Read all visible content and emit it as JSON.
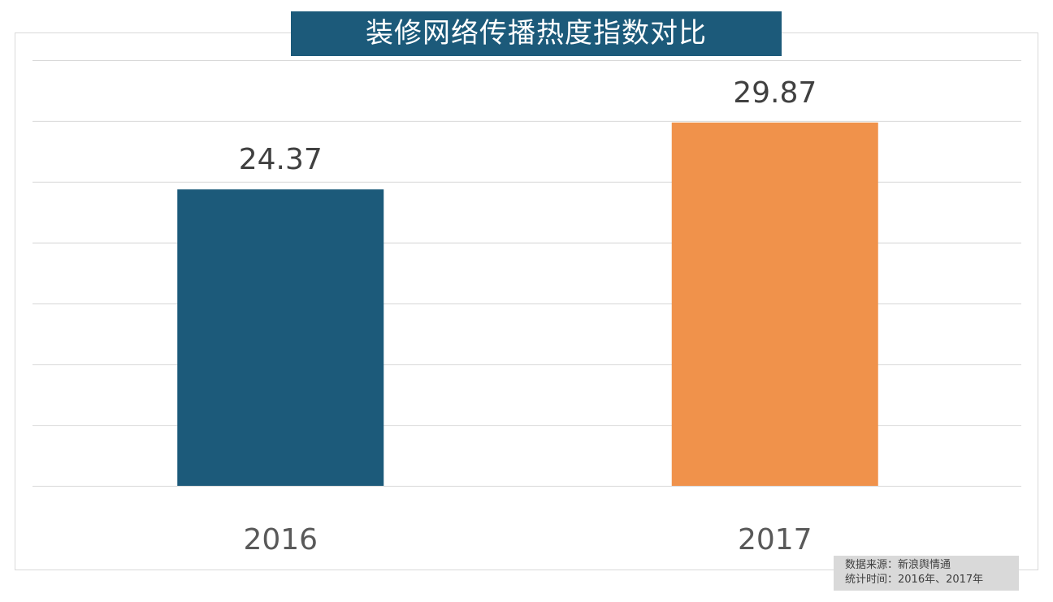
{
  "chart_data": {
    "type": "bar",
    "title": "装修网络传播热度指数对比",
    "categories": [
      "2016",
      "2017"
    ],
    "values": [
      24.37,
      29.87
    ],
    "colors": [
      "#1c5a7a",
      "#f0924b"
    ],
    "xlabel": "",
    "ylabel": "",
    "ylim": [
      0,
      35
    ],
    "grid": true,
    "y_tick_step": 5,
    "y_tick_labels_shown": false,
    "data_labels": [
      "24.37",
      "29.87"
    ]
  },
  "source_note": {
    "line1": "数据来源：新浪舆情通",
    "line2": "统计时间：2016年、2017年"
  }
}
